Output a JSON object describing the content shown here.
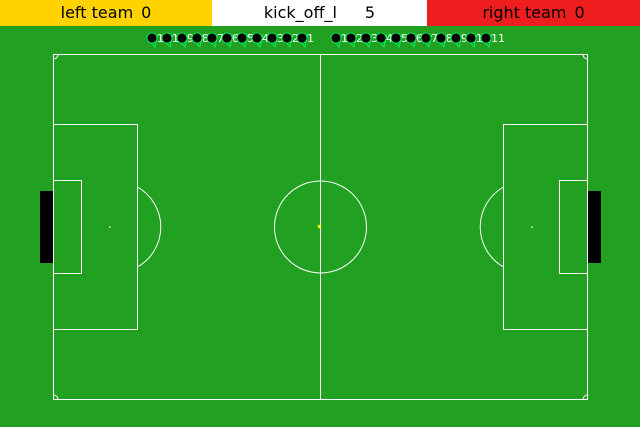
{
  "scoreboard": {
    "left_team_name": "left team",
    "left_team_score": "0",
    "play_mode": "kick_off_l",
    "cycle": "5",
    "right_team_name": "right team",
    "right_team_score": "0"
  },
  "colors": {
    "field": "#21a021",
    "lines": "#ffffff",
    "left_team": "#ffd200",
    "right_team": "#ee1e1e",
    "goal": "#000000",
    "ball": "#ffff00",
    "player_body": "#000000",
    "player_outline": "#00ff66"
  },
  "left_players": [
    "11",
    "10",
    "9",
    "8",
    "7",
    "6",
    "5",
    "4",
    "3",
    "2",
    "1"
  ],
  "right_players": [
    "1",
    "2",
    "3",
    "4",
    "5",
    "6",
    "7",
    "8",
    "9",
    "10",
    "11"
  ],
  "ball_icon": "ball-dot"
}
